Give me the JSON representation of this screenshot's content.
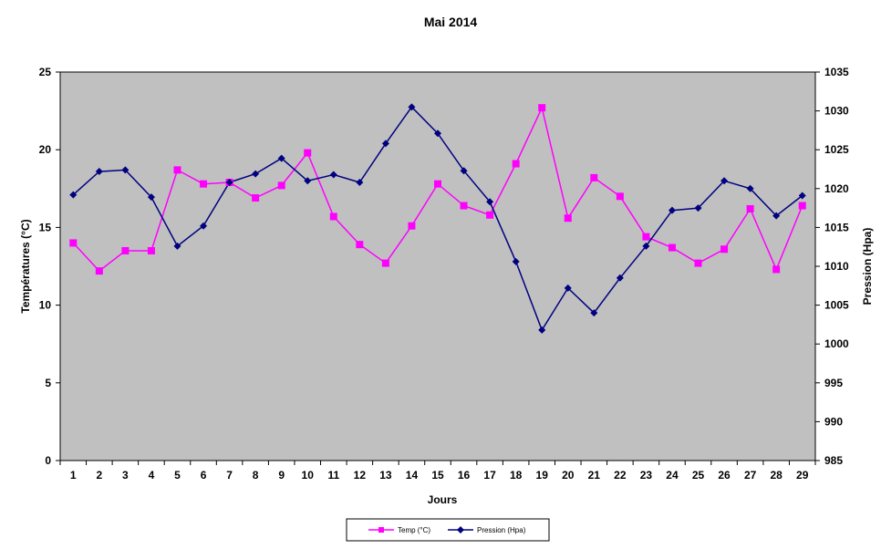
{
  "chart_data": {
    "type": "line",
    "title": "Mai 2014",
    "xlabel": "Jours",
    "ylabel_left": "Températures (°C)",
    "ylabel_right": "Pression (Hpa)",
    "ylim_left": [
      0,
      25
    ],
    "ylim_right": [
      985,
      1035
    ],
    "yticks_left": [
      "0",
      "5",
      "10",
      "15",
      "20",
      "25"
    ],
    "yticks_right": [
      "985",
      "990",
      "995",
      "1000",
      "1005",
      "1010",
      "1015",
      "1020",
      "1025",
      "1030",
      "1035"
    ],
    "categories": [
      "1",
      "2",
      "3",
      "4",
      "5",
      "6",
      "7",
      "8",
      "9",
      "10",
      "11",
      "12",
      "13",
      "14",
      "15",
      "16",
      "17",
      "18",
      "19",
      "20",
      "21",
      "22",
      "23",
      "24",
      "25",
      "26",
      "27",
      "28",
      "29"
    ],
    "plot_background": "#c0c0c0",
    "grid": false,
    "legend_position": "bottom",
    "series": [
      {
        "name": "Temp (°C)",
        "axis": "left",
        "color": "#ff00ff",
        "marker": "square",
        "values": [
          14.0,
          12.2,
          13.5,
          13.5,
          18.7,
          17.8,
          17.9,
          16.9,
          17.7,
          19.8,
          15.7,
          13.9,
          12.7,
          15.1,
          17.8,
          16.4,
          15.8,
          19.1,
          22.7,
          15.6,
          18.2,
          17.0,
          14.4,
          13.7,
          12.7,
          13.6,
          16.2,
          12.3,
          16.4
        ]
      },
      {
        "name": "Pression (Hpa)",
        "axis": "right",
        "color": "#000080",
        "marker": "diamond",
        "values": [
          1019.2,
          1022.2,
          1022.4,
          1018.9,
          1012.6,
          1015.2,
          1020.8,
          1021.9,
          1023.9,
          1021.0,
          1021.8,
          1020.8,
          1025.8,
          1030.5,
          1027.1,
          1022.3,
          1018.3,
          1010.6,
          1001.8,
          1007.2,
          1004.0,
          1008.5,
          1012.6,
          1017.2,
          1017.5,
          1021.0,
          1020.0,
          1016.5,
          1019.1
        ]
      }
    ]
  }
}
